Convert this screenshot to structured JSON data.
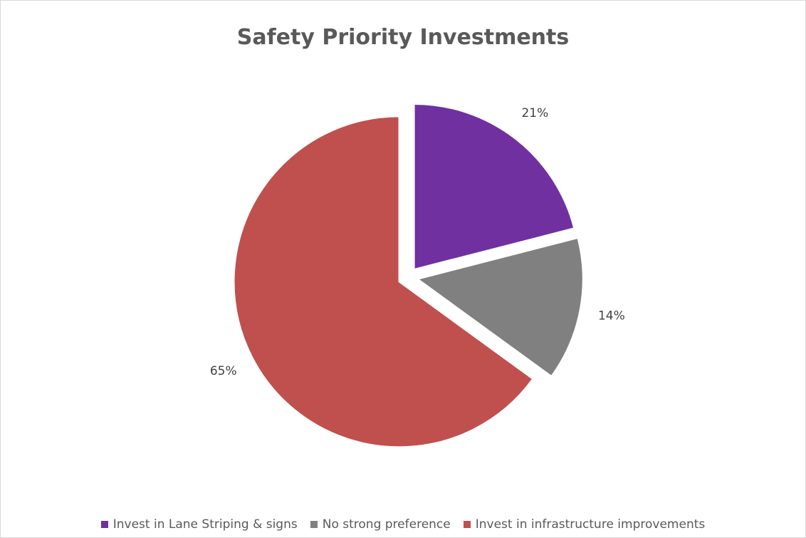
{
  "chart_data": {
    "type": "pie",
    "title": "Safety Priority Investments",
    "categories": [
      "Invest in Lane Striping & signs",
      "No strong preference",
      "Invest in infrastructure improvements"
    ],
    "values": [
      21,
      14,
      65
    ],
    "data_labels": [
      "21%",
      "14%",
      "65%"
    ],
    "colors": [
      "#7030a0",
      "#808080",
      "#c0504d"
    ],
    "exploded": true,
    "legend_position": "bottom"
  }
}
